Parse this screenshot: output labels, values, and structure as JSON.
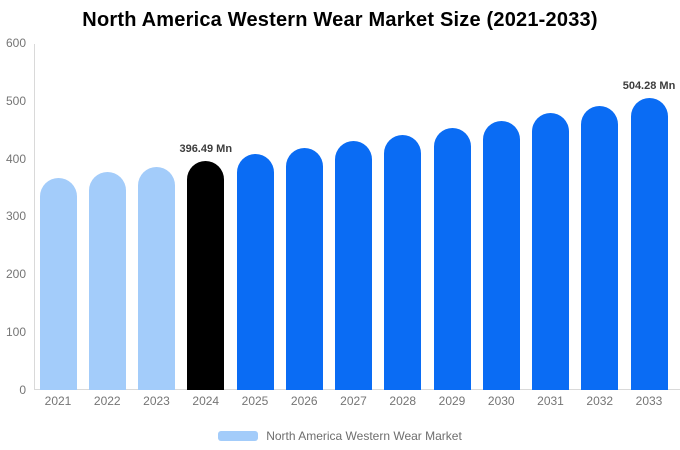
{
  "chart_data": {
    "type": "bar",
    "title": "North America Western Wear Market Size (2021-2033)",
    "categories": [
      "2021",
      "2022",
      "2023",
      "2024",
      "2025",
      "2026",
      "2027",
      "2028",
      "2029",
      "2030",
      "2031",
      "2032",
      "2033"
    ],
    "values": [
      365.9,
      375.8,
      386.0,
      396.49,
      407.2,
      418.3,
      429.6,
      441.2,
      453.2,
      465.4,
      478.1,
      491.0,
      504.28
    ],
    "bar_colors": [
      "#a3ccfa",
      "#a3ccfa",
      "#a3ccfa",
      "#000000",
      "#0a6cf4",
      "#0a6cf4",
      "#0a6cf4",
      "#0a6cf4",
      "#0a6cf4",
      "#0a6cf4",
      "#0a6cf4",
      "#0a6cf4",
      "#0a6cf4"
    ],
    "palette": {
      "historical": "#a3ccfa",
      "highlight_year": "#000000",
      "forecast": "#0a6cf4"
    },
    "data_labels": [
      {
        "category": "2024",
        "text": "396.49 Mn"
      },
      {
        "category": "2033",
        "text": "504.28 Mn"
      }
    ],
    "xlabel": "",
    "ylabel": "",
    "ylim": [
      0,
      600
    ],
    "yticks": [
      0,
      100,
      200,
      300,
      400,
      500,
      600
    ],
    "grid": false,
    "legend": {
      "label": "North America Western Wear Market",
      "swatch_color": "#a3ccfa",
      "position": "bottom"
    }
  }
}
